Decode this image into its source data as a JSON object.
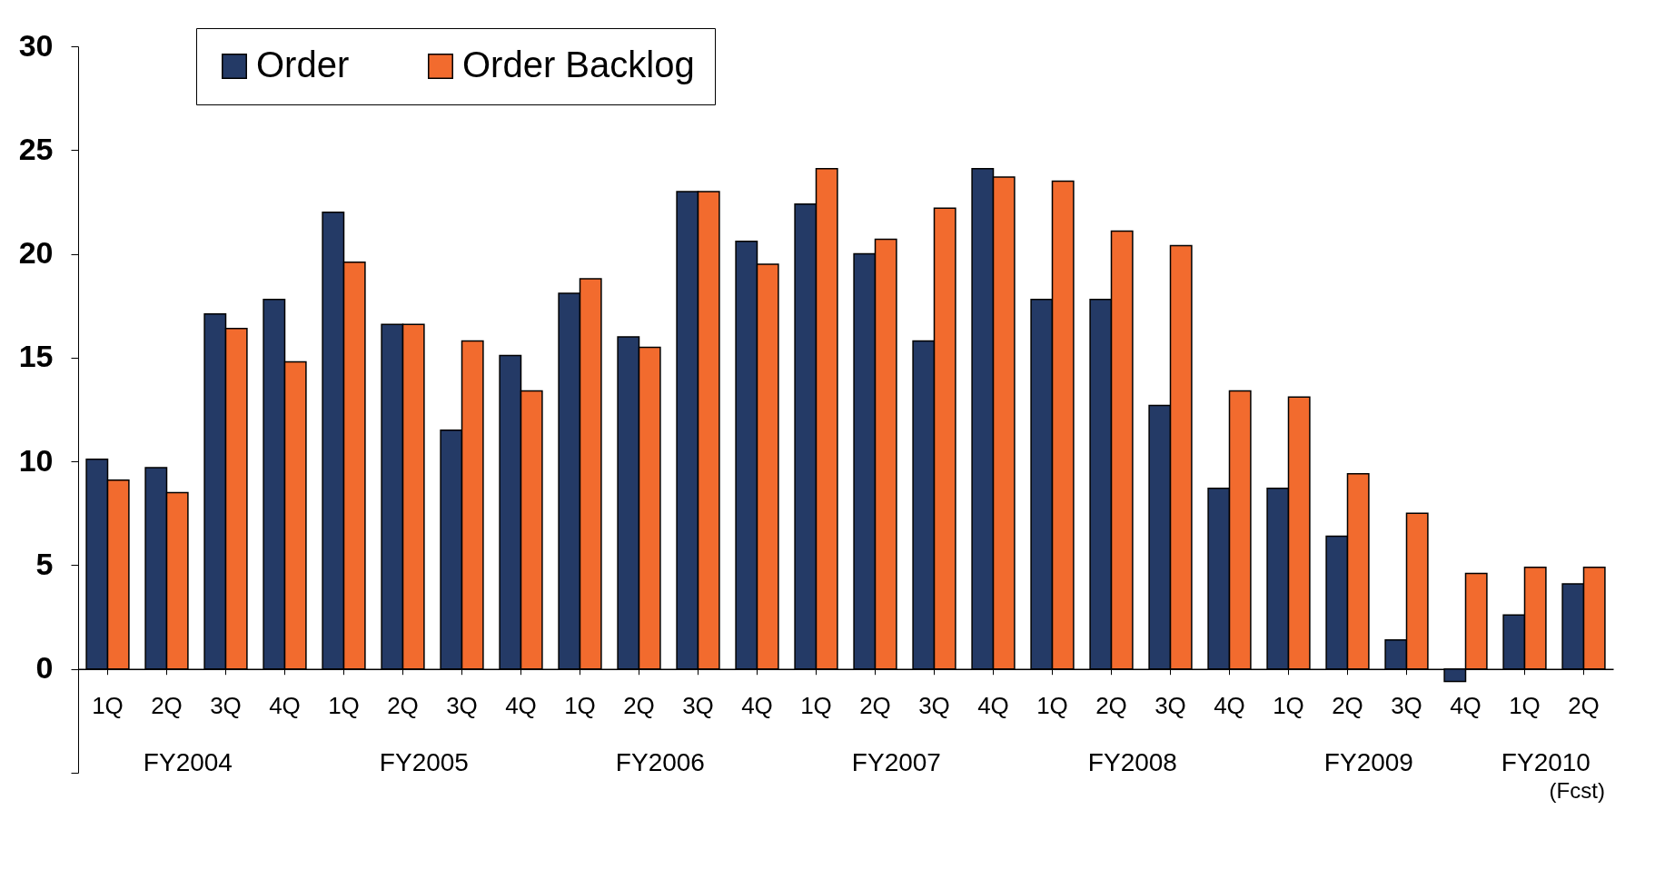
{
  "chart_data": {
    "type": "bar",
    "categories": [
      "1Q",
      "2Q",
      "3Q",
      "4Q",
      "1Q",
      "2Q",
      "3Q",
      "4Q",
      "1Q",
      "2Q",
      "3Q",
      "4Q",
      "1Q",
      "2Q",
      "3Q",
      "4Q",
      "1Q",
      "2Q",
      "3Q",
      "4Q",
      "1Q",
      "2Q",
      "3Q",
      "4Q",
      "1Q",
      "2Q"
    ],
    "series": [
      {
        "name": "Order",
        "color": "#243a66",
        "values": [
          10.1,
          9.7,
          17.1,
          17.8,
          22.0,
          16.6,
          11.5,
          15.1,
          18.1,
          16.0,
          23.0,
          20.6,
          22.4,
          20.0,
          15.8,
          24.1,
          17.8,
          17.8,
          12.7,
          8.7,
          8.7,
          6.4,
          1.4,
          -0.6,
          2.6,
          4.1
        ]
      },
      {
        "name": "Order Backlog",
        "color": "#f26b2e",
        "values": [
          9.1,
          8.5,
          16.4,
          14.8,
          19.6,
          16.6,
          15.8,
          13.4,
          18.8,
          15.5,
          23.0,
          19.5,
          24.1,
          20.7,
          22.2,
          23.7,
          23.5,
          21.1,
          20.4,
          13.4,
          13.1,
          9.4,
          7.5,
          4.6,
          4.9,
          4.9
        ]
      }
    ],
    "ylim": [
      -5,
      30
    ],
    "yticks": [
      {
        "value": -5,
        "label": null
      },
      0,
      5,
      10,
      15,
      20,
      25,
      30
    ],
    "annotations": [
      "FY2004",
      "FY2005",
      "FY2006",
      "FY2007",
      "FY2008",
      "FY2009",
      "FY2010",
      "(Fcst)"
    ],
    "legend": "top left",
    "grid": false
  }
}
